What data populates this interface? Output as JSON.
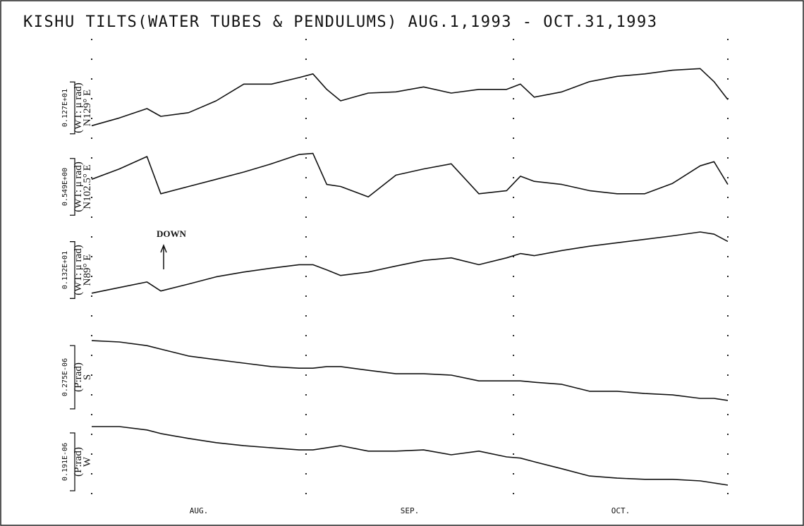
{
  "chart_data": {
    "type": "line",
    "title": "KISHU TILTS(WATER TUBES & PENDULUMS) AUG.1,1993 - OCT.31,1993",
    "annotation": "DOWN",
    "xlim": [
      0,
      92
    ],
    "xticks": [
      0,
      31,
      61,
      92
    ],
    "month_labels": [
      {
        "value": 15.5,
        "label": "AUG."
      },
      {
        "value": 46,
        "label": "SEP."
      },
      {
        "value": 76.5,
        "label": "OCT."
      }
    ],
    "x": [
      0,
      4,
      8,
      10,
      14,
      18,
      22,
      26,
      30,
      32,
      34,
      36,
      40,
      44,
      48,
      52,
      56,
      60,
      62,
      64,
      68,
      72,
      76,
      80,
      84,
      88,
      90,
      92
    ],
    "color": "#111111",
    "series": [
      {
        "name": "N129° E",
        "unit": "(WT: μ rad)",
        "scale": {
          "value": 1.27,
          "label": "0.127E+01"
        },
        "ylim": [
          0,
          1.9
        ],
        "values": [
          0.34,
          0.53,
          0.76,
          0.57,
          0.66,
          0.95,
          1.36,
          1.36,
          1.52,
          1.61,
          1.23,
          0.95,
          1.14,
          1.17,
          1.29,
          1.14,
          1.23,
          1.23,
          1.36,
          1.04,
          1.17,
          1.42,
          1.55,
          1.61,
          1.7,
          1.74,
          1.42,
          0.98
        ]
      },
      {
        "name": "N102.5° E",
        "unit": "(WT: μ rad)",
        "scale": {
          "value": 0.549,
          "label": "0.549E+00"
        },
        "ylim": [
          0,
          0.75
        ],
        "values": [
          0.38,
          0.48,
          0.6,
          0.24,
          0.31,
          0.38,
          0.45,
          0.53,
          0.62,
          0.63,
          0.33,
          0.31,
          0.21,
          0.42,
          0.48,
          0.53,
          0.24,
          0.27,
          0.41,
          0.36,
          0.33,
          0.27,
          0.24,
          0.24,
          0.34,
          0.51,
          0.55,
          0.33
        ]
      },
      {
        "name": "N89° E",
        "unit": "(WT: μ rad)",
        "scale": {
          "value": 1.32,
          "label": "0.132E+01"
        },
        "ylim": [
          0,
          1.8
        ],
        "values": [
          0.2,
          0.33,
          0.46,
          0.25,
          0.41,
          0.58,
          0.69,
          0.78,
          0.86,
          0.86,
          0.74,
          0.61,
          0.69,
          0.83,
          0.96,
          1.02,
          0.86,
          1.02,
          1.12,
          1.07,
          1.19,
          1.29,
          1.37,
          1.45,
          1.53,
          1.62,
          1.57,
          1.4
        ]
      },
      {
        "name": "S",
        "unit": "(P:rad)",
        "scale": {
          "value": 2.75e-07,
          "label": "0.275E-06"
        },
        "ylim": [
          0,
          3.37e-07
        ],
        "values": [
          2.97e-07,
          2.91e-07,
          2.75e-07,
          2.6e-07,
          2.3e-07,
          2.14e-07,
          1.99e-07,
          1.84e-07,
          1.77e-07,
          1.77e-07,
          1.84e-07,
          1.84e-07,
          1.68e-07,
          1.53e-07,
          1.53e-07,
          1.47e-07,
          1.22e-07,
          1.22e-07,
          1.22e-07,
          1.16e-07,
          1.07e-07,
          7.7e-08,
          7.7e-08,
          6.7e-08,
          6.1e-08,
          4.6e-08,
          4.6e-08,
          3.7e-08
        ]
      },
      {
        "name": "W",
        "unit": "(P:rad)",
        "scale": {
          "value": 1.91e-07,
          "label": "0.191E-06"
        },
        "ylim": [
          0,
          2.56e-07
        ],
        "values": [
          2.21e-07,
          2.21e-07,
          2.1e-07,
          1.98e-07,
          1.82e-07,
          1.68e-07,
          1.58e-07,
          1.51e-07,
          1.44e-07,
          1.44e-07,
          1.51e-07,
          1.58e-07,
          1.4e-07,
          1.4e-07,
          1.44e-07,
          1.28e-07,
          1.4e-07,
          1.21e-07,
          1.17e-07,
          1.05e-07,
          8.2e-08,
          5.8e-08,
          5.1e-08,
          4.7e-08,
          4.7e-08,
          4.2e-08,
          3.5e-08,
          2.8e-08
        ]
      }
    ]
  }
}
